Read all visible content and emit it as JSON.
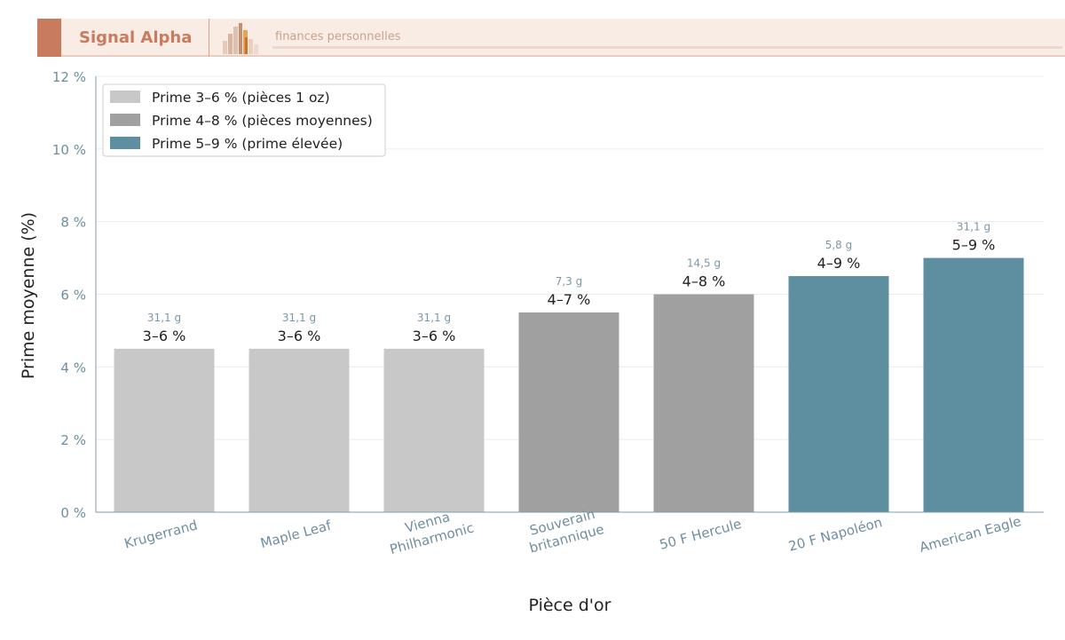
{
  "brand": {
    "name": "Signal Alpha",
    "tagline": "finances personnelles",
    "accent_color": "#c97b5f",
    "logo_icon": "bar-chart-logo-icon"
  },
  "chart_data": {
    "type": "bar",
    "xlabel": "Pièce d'or",
    "ylabel": "Prime moyenne (%)",
    "ylim": [
      0,
      12
    ],
    "yticks": [
      {
        "value": 0,
        "label": "0 %"
      },
      {
        "value": 2,
        "label": "2 %"
      },
      {
        "value": 4,
        "label": "4 %"
      },
      {
        "value": 6,
        "label": "6 %"
      },
      {
        "value": 8,
        "label": "8 %"
      },
      {
        "value": 10,
        "label": "10 %"
      },
      {
        "value": 12,
        "label": "12 %"
      }
    ],
    "grid": true,
    "legend_position": "top-left",
    "groups": [
      {
        "name": "Prime 3–6 % (pièces 1 oz)",
        "color": "#c8c8c8"
      },
      {
        "name": "Prime 4–8 % (pièces moyennes)",
        "color": "#a0a0a0"
      },
      {
        "name": "Prime 5–9 % (prime élevée)",
        "color": "#5e8fa0"
      }
    ],
    "bars": [
      {
        "category": [
          "Krugerrand"
        ],
        "value": 4.5,
        "range_label": "3–6 %",
        "weight_label": "31,1 g",
        "group": 0
      },
      {
        "category": [
          "Maple Leaf"
        ],
        "value": 4.5,
        "range_label": "3–6 %",
        "weight_label": "31,1 g",
        "group": 0
      },
      {
        "category": [
          "Vienna",
          "Philharmonic"
        ],
        "value": 4.5,
        "range_label": "3–6 %",
        "weight_label": "31,1 g",
        "group": 0
      },
      {
        "category": [
          "Souverain",
          "britannique"
        ],
        "value": 5.5,
        "range_label": "4–7 %",
        "weight_label": "7,3 g",
        "group": 1
      },
      {
        "category": [
          "50 F Hercule"
        ],
        "value": 6.0,
        "range_label": "4–8 %",
        "weight_label": "14,5 g",
        "group": 1
      },
      {
        "category": [
          "20 F Napoléon"
        ],
        "value": 6.5,
        "range_label": "4–9 %",
        "weight_label": "5,8 g",
        "group": 2
      },
      {
        "category": [
          "American Eagle"
        ],
        "value": 7.0,
        "range_label": "5–9 %",
        "weight_label": "31,1 g",
        "group": 2
      }
    ]
  }
}
